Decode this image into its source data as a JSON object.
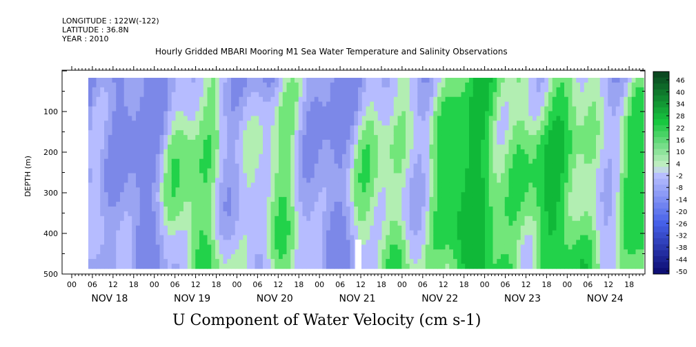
{
  "header": {
    "longitude": "LONGITUDE : 122W(-122)",
    "latitude": "LATITUDE : 36.8N",
    "year": "YEAR : 2010",
    "title": "Hourly Gridded MBARI Mooring M1 Sea Water Temperature and Salinity Observations"
  },
  "chart_data": {
    "type": "heatmap",
    "title": "Hourly Gridded MBARI Mooring M1 Sea Water Temperature and Salinity Observations",
    "xlabel": "U Component of Water Velocity (cm s-1)",
    "ylabel": "DEPTH (m)",
    "y_ticks": [
      100,
      200,
      300,
      400,
      500
    ],
    "ylim": [
      500,
      0
    ],
    "x_hour_labels": [
      "00",
      "06",
      "12",
      "18",
      "00",
      "06",
      "12",
      "18",
      "00",
      "06",
      "12",
      "18",
      "00",
      "06",
      "12",
      "18",
      "00",
      "06",
      "12",
      "18",
      "00",
      "06",
      "12",
      "18",
      "00",
      "06",
      "12",
      "18",
      "00",
      "06",
      "12",
      "18"
    ],
    "x_day_labels": [
      "NOV 18",
      "NOV 19",
      "NOV 20",
      "NOV 21",
      "NOV 22",
      "NOV 23",
      "NOV 24"
    ],
    "colorbar_labels": [
      "46",
      "40",
      "34",
      "28",
      "22",
      "16",
      "10",
      "4",
      "-2",
      "-8",
      "-14",
      "-20",
      "-26",
      "-32",
      "-38",
      "-44",
      "-50"
    ],
    "colorbar_range": [
      -50,
      50
    ],
    "colorscale": "blue (negative) to green (positive)",
    "colors": {
      "neg_dark": "#0a0a6e",
      "neg_mid": "#4a5ee8",
      "neg_light": "#aab4ff",
      "zero": "#c8f0c8",
      "pos_light": "#8ee88e",
      "pos_mid": "#18cc40",
      "pos_dark": "#0a4a1e"
    }
  }
}
